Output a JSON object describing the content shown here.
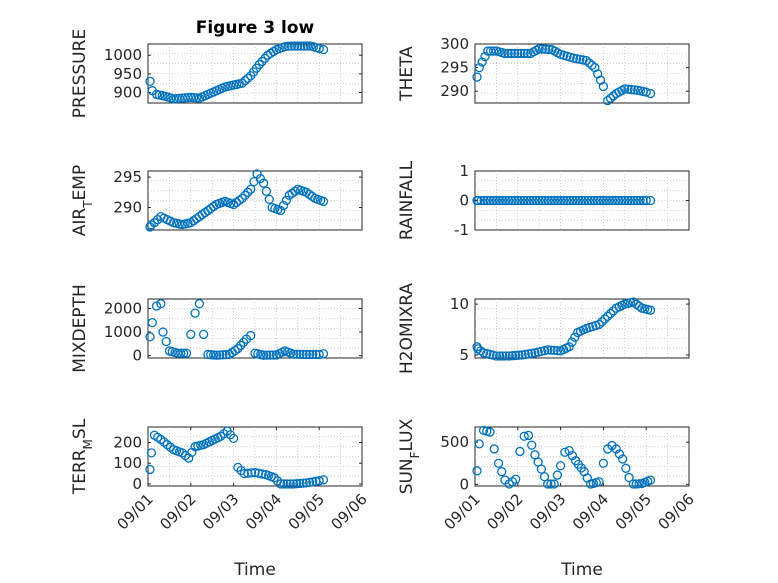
{
  "figure": {
    "title": "Figure 3 low"
  },
  "colors": {
    "series": "#0072bd",
    "axis": "#262626",
    "grid": "#b0b0b0",
    "background": "#ffffff"
  },
  "chart_data": [
    {
      "type": "scatter",
      "ylabel": "PRESSURE",
      "xlim": [
        0,
        5
      ],
      "ylim": [
        872,
        1030
      ],
      "yticks": [
        900,
        950,
        1000
      ],
      "ytick_labels": [
        "900",
        "950",
        "1000"
      ],
      "xticks": [],
      "xtick_labels": [],
      "xlabel": "",
      "title": "Figure 3 low",
      "points": [
        [
          0,
          930
        ],
        [
          0.1,
          905
        ],
        [
          0.2,
          895
        ],
        [
          0.4,
          890
        ],
        [
          0.6,
          883
        ],
        [
          0.8,
          885
        ],
        [
          1,
          887
        ],
        [
          1.2,
          885
        ],
        [
          1.4,
          895
        ],
        [
          1.6,
          905
        ],
        [
          1.8,
          915
        ],
        [
          2,
          920
        ],
        [
          2.2,
          925
        ],
        [
          2.4,
          945
        ],
        [
          2.6,
          975
        ],
        [
          2.8,
          1000
        ],
        [
          3,
          1015
        ],
        [
          3.2,
          1023
        ],
        [
          3.5,
          1027
        ],
        [
          3.8,
          1025
        ],
        [
          4,
          1018
        ],
        [
          4.1,
          1015
        ]
      ]
    },
    {
      "type": "scatter",
      "ylabel": "THETA",
      "xlim": [
        0,
        5
      ],
      "ylim": [
        287.5,
        300
      ],
      "yticks": [
        290,
        295,
        300
      ],
      "ytick_labels": [
        "290",
        "295",
        "300"
      ],
      "xticks": [],
      "xtick_labels": [],
      "xlabel": "",
      "title": "",
      "points": [
        [
          0,
          293
        ],
        [
          0.1,
          295
        ],
        [
          0.3,
          298.5
        ],
        [
          0.5,
          298.5
        ],
        [
          0.7,
          298
        ],
        [
          1,
          298
        ],
        [
          1.3,
          298
        ],
        [
          1.5,
          299
        ],
        [
          1.8,
          298.8
        ],
        [
          2,
          297.8
        ],
        [
          2.3,
          297
        ],
        [
          2.6,
          296.5
        ],
        [
          2.8,
          295
        ],
        [
          3,
          291
        ],
        [
          3.1,
          288
        ],
        [
          3.3,
          289.5
        ],
        [
          3.5,
          290.5
        ],
        [
          3.8,
          290.2
        ],
        [
          4,
          289.8
        ],
        [
          4.1,
          289.5
        ]
      ]
    },
    {
      "type": "scatter",
      "ylabel": "AIR_TEMP",
      "xlim": [
        0,
        5
      ],
      "ylim": [
        286.3,
        296
      ],
      "yticks": [
        290,
        295
      ],
      "ytick_labels": [
        "290",
        "295"
      ],
      "xticks": [],
      "xtick_labels": [],
      "xlabel": "",
      "title": "",
      "points": [
        [
          0,
          286.8
        ],
        [
          0.15,
          287.5
        ],
        [
          0.3,
          288.5
        ],
        [
          0.45,
          288
        ],
        [
          0.6,
          287.5
        ],
        [
          0.8,
          287.2
        ],
        [
          1,
          287.5
        ],
        [
          1.2,
          288.5
        ],
        [
          1.4,
          289.5
        ],
        [
          1.6,
          290.5
        ],
        [
          1.8,
          291
        ],
        [
          2,
          290.5
        ],
        [
          2.2,
          291.5
        ],
        [
          2.4,
          293
        ],
        [
          2.55,
          295.5
        ],
        [
          2.7,
          294
        ],
        [
          2.9,
          290
        ],
        [
          3.1,
          289.5
        ],
        [
          3.3,
          292
        ],
        [
          3.5,
          293
        ],
        [
          3.7,
          292.5
        ],
        [
          3.9,
          291.5
        ],
        [
          4.1,
          291
        ]
      ]
    },
    {
      "type": "scatter",
      "ylabel": "RAINFALL",
      "xlim": [
        0,
        5
      ],
      "ylim": [
        -1,
        1
      ],
      "yticks": [
        -1,
        0,
        1
      ],
      "ytick_labels": [
        "-1",
        "0",
        "1"
      ],
      "xticks": [],
      "xtick_labels": [],
      "xlabel": "",
      "title": "",
      "points": [
        [
          0,
          0
        ],
        [
          0.5,
          0
        ],
        [
          1,
          0
        ],
        [
          1.5,
          0
        ],
        [
          2,
          0
        ],
        [
          2.5,
          0
        ],
        [
          3,
          0
        ],
        [
          3.5,
          0
        ],
        [
          4,
          0
        ],
        [
          4.1,
          0
        ]
      ]
    },
    {
      "type": "scatter",
      "ylabel": "MIXDEPTH",
      "xlim": [
        0,
        5
      ],
      "ylim": [
        -100,
        2400
      ],
      "yticks": [
        0,
        1000,
        2000
      ],
      "ytick_labels": [
        "0",
        "1000",
        "2000"
      ],
      "xticks": [],
      "xtick_labels": [],
      "xlabel": "",
      "title": "",
      "points": [
        [
          0,
          800
        ],
        [
          0.1,
          1400
        ],
        [
          0.2,
          2100
        ],
        [
          0.3,
          2200
        ],
        [
          0.35,
          1000
        ],
        [
          0.5,
          200
        ],
        [
          0.7,
          100
        ],
        [
          0.9,
          100
        ],
        [
          1,
          900
        ],
        [
          1.1,
          1800
        ],
        [
          1.2,
          2200
        ],
        [
          1.3,
          900
        ],
        [
          1.4,
          50
        ],
        [
          1.6,
          20
        ],
        [
          1.9,
          50
        ],
        [
          2.1,
          300
        ],
        [
          2.3,
          700
        ],
        [
          2.4,
          850
        ],
        [
          2.5,
          100
        ],
        [
          2.7,
          20
        ],
        [
          3,
          30
        ],
        [
          3.2,
          200
        ],
        [
          3.4,
          60
        ],
        [
          3.7,
          50
        ],
        [
          4,
          50
        ],
        [
          4.1,
          80
        ]
      ]
    },
    {
      "type": "scatter",
      "ylabel": "H2OMIXRA",
      "xlim": [
        0,
        5
      ],
      "ylim": [
        4.7,
        10.5
      ],
      "yticks": [
        5,
        10
      ],
      "ytick_labels": [
        "5",
        "10"
      ],
      "xticks": [],
      "xtick_labels": [],
      "xlabel": "",
      "title": "",
      "points": [
        [
          0,
          5.8
        ],
        [
          0.2,
          5.2
        ],
        [
          0.5,
          4.9
        ],
        [
          0.8,
          4.9
        ],
        [
          1.1,
          5.0
        ],
        [
          1.4,
          5.2
        ],
        [
          1.7,
          5.5
        ],
        [
          2,
          5.4
        ],
        [
          2.2,
          5.8
        ],
        [
          2.4,
          7.2
        ],
        [
          2.6,
          7.6
        ],
        [
          2.9,
          8.0
        ],
        [
          3.1,
          8.8
        ],
        [
          3.3,
          9.6
        ],
        [
          3.5,
          10
        ],
        [
          3.7,
          10.2
        ],
        [
          3.9,
          9.6
        ],
        [
          4.1,
          9.4
        ]
      ]
    },
    {
      "type": "scatter",
      "ylabel": "TERR_MSL",
      "xlim": [
        0,
        5
      ],
      "ylim": [
        -10,
        275
      ],
      "yticks": [
        0,
        100,
        200
      ],
      "ytick_labels": [
        "0",
        "100",
        "200"
      ],
      "xticks": [
        0,
        1,
        2,
        3,
        4,
        5
      ],
      "xtick_labels": [
        "09/01",
        "09/02",
        "09/03",
        "09/04",
        "09/05",
        "09/06"
      ],
      "xlabel": "Time",
      "title": "",
      "points": [
        [
          0,
          70
        ],
        [
          0.08,
          150
        ],
        [
          0.15,
          235
        ],
        [
          0.3,
          215
        ],
        [
          0.45,
          190
        ],
        [
          0.6,
          165
        ],
        [
          0.8,
          150
        ],
        [
          0.95,
          125
        ],
        [
          1.1,
          180
        ],
        [
          1.3,
          190
        ],
        [
          1.5,
          210
        ],
        [
          1.7,
          230
        ],
        [
          1.85,
          255
        ],
        [
          2,
          220
        ],
        [
          2.1,
          80
        ],
        [
          2.25,
          50
        ],
        [
          2.5,
          55
        ],
        [
          2.75,
          45
        ],
        [
          2.95,
          30
        ],
        [
          3.1,
          0
        ],
        [
          3.4,
          0
        ],
        [
          3.7,
          5
        ],
        [
          4,
          15
        ],
        [
          4.1,
          20
        ]
      ]
    },
    {
      "type": "scatter",
      "ylabel": "SUN_FLUX",
      "xlim": [
        0,
        5
      ],
      "ylim": [
        -20,
        680
      ],
      "yticks": [
        0,
        500
      ],
      "ytick_labels": [
        "0",
        "500"
      ],
      "xticks": [
        0,
        1,
        2,
        3,
        4,
        5
      ],
      "xtick_labels": [
        "09/01",
        "09/02",
        "09/03",
        "09/04",
        "09/05",
        "09/06"
      ],
      "xlabel": "Time",
      "title": "",
      "points": [
        [
          0,
          160
        ],
        [
          0.1,
          480
        ],
        [
          0.2,
          640
        ],
        [
          0.35,
          620
        ],
        [
          0.45,
          420
        ],
        [
          0.55,
          250
        ],
        [
          0.7,
          50
        ],
        [
          0.8,
          0
        ],
        [
          0.95,
          60
        ],
        [
          1.05,
          390
        ],
        [
          1.15,
          570
        ],
        [
          1.25,
          580
        ],
        [
          1.4,
          350
        ],
        [
          1.55,
          180
        ],
        [
          1.7,
          0
        ],
        [
          1.85,
          0
        ],
        [
          2,
          220
        ],
        [
          2.1,
          380
        ],
        [
          2.2,
          400
        ],
        [
          2.35,
          280
        ],
        [
          2.55,
          150
        ],
        [
          2.7,
          0
        ],
        [
          2.9,
          30
        ],
        [
          3,
          250
        ],
        [
          3.1,
          420
        ],
        [
          3.2,
          460
        ],
        [
          3.3,
          420
        ],
        [
          3.45,
          300
        ],
        [
          3.6,
          80
        ],
        [
          3.7,
          0
        ],
        [
          3.9,
          10
        ],
        [
          4.1,
          50
        ]
      ]
    }
  ]
}
